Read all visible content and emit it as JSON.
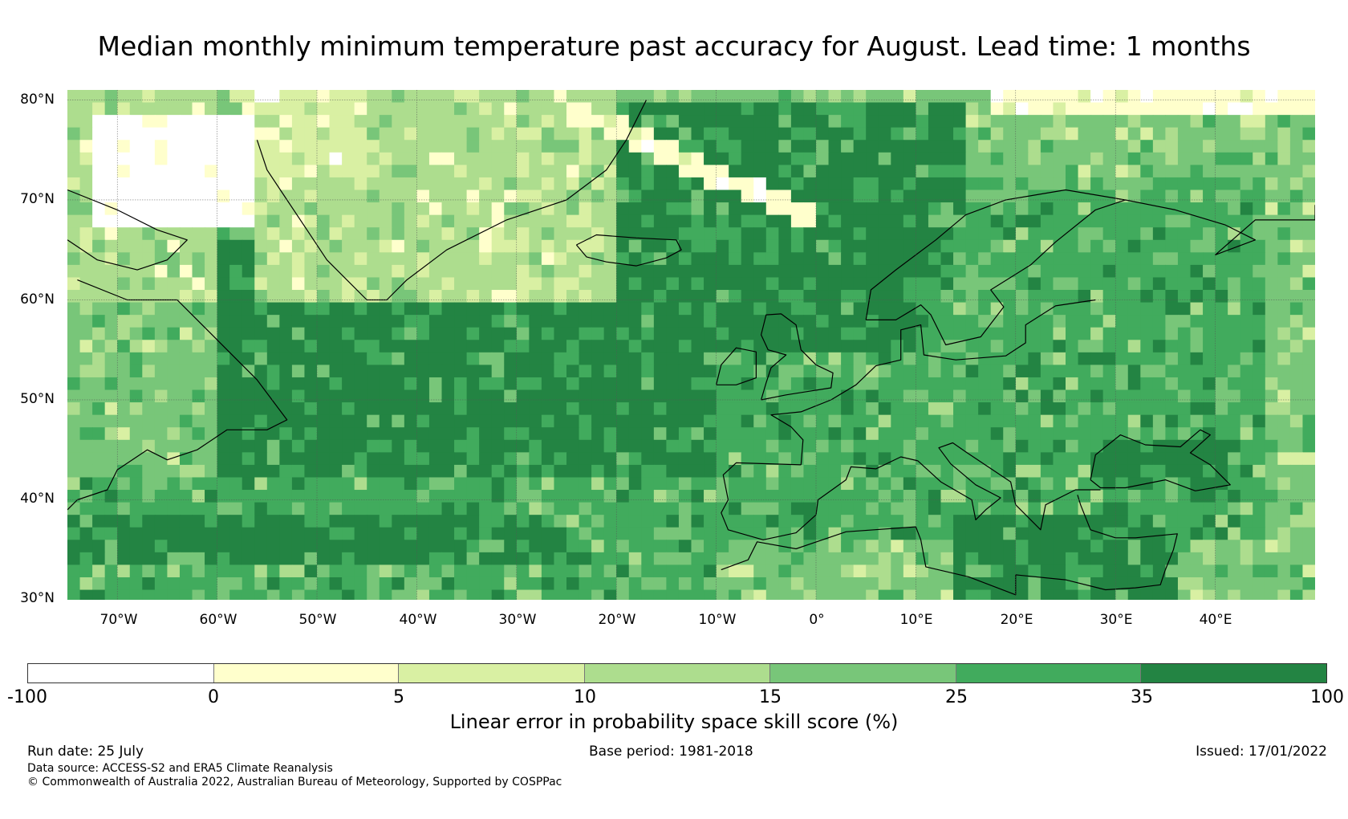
{
  "title": "Median monthly minimum temperature past accuracy for August. Lead time: 1 months",
  "map": {
    "lat_labels": [
      "80°N",
      "70°N",
      "60°N",
      "50°N",
      "40°N",
      "30°N"
    ],
    "lon_labels": [
      "70°W",
      "60°W",
      "50°W",
      "40°W",
      "30°W",
      "20°W",
      "10°W",
      "0°",
      "10°E",
      "20°E",
      "30°E",
      "40°E"
    ],
    "lon_range": [
      -75,
      50
    ],
    "lat_range": [
      30,
      81
    ],
    "gridlines": true
  },
  "colorbar": {
    "title": "Linear error in probability space skill score (%)",
    "ticks": [
      "-100",
      "0",
      "5",
      "10",
      "15",
      "25",
      "35",
      "100"
    ],
    "colors": [
      "#ffffff",
      "#ffffcc",
      "#d9f0a3",
      "#addd8e",
      "#78c679",
      "#41ab5d",
      "#238443"
    ]
  },
  "footer": {
    "run_date": "Run date: 25 July",
    "base_period": "Base period: 1981-2018",
    "issued": "Issued: 17/01/2022",
    "data_source": "Data source: ACCESS-S2 and ERA5 Climate Reanalysis",
    "copyright": "© Commonwealth of Australia 2022, Australian Bureau of Meteorology, Supported by COSPPac"
  }
}
